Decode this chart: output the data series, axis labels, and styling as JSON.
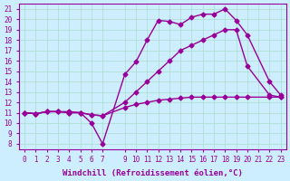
{
  "background_color": "#cceeff",
  "grid_color": "#aaddcc",
  "line_color": "#990099",
  "marker": "D",
  "markersize": 2.5,
  "linewidth": 1.0,
  "xlabel": "Windchill (Refroidissement éolien,°C)",
  "xlabel_fontsize": 6.5,
  "tick_fontsize": 5.5,
  "xlim": [
    -0.5,
    23.5
  ],
  "ylim": [
    7.5,
    21.5
  ],
  "yticks": [
    8,
    9,
    10,
    11,
    12,
    13,
    14,
    15,
    16,
    17,
    18,
    19,
    20,
    21
  ],
  "xticks": [
    0,
    1,
    2,
    3,
    4,
    5,
    6,
    7,
    9,
    10,
    11,
    12,
    13,
    14,
    15,
    16,
    17,
    18,
    19,
    20,
    21,
    22,
    23
  ],
  "series": [
    {
      "x": [
        0,
        1,
        2,
        3,
        4,
        5,
        6,
        7,
        9,
        10,
        11,
        12,
        13,
        14,
        15,
        16,
        17,
        18,
        19,
        20,
        22,
        23
      ],
      "y": [
        11.0,
        10.9,
        11.1,
        11.1,
        11.1,
        11.0,
        10.0,
        8.0,
        14.7,
        15.9,
        18.0,
        19.9,
        19.8,
        19.5,
        20.2,
        20.5,
        20.5,
        21.0,
        19.9,
        18.5,
        14.0,
        12.7
      ]
    },
    {
      "x": [
        0,
        1,
        2,
        3,
        4,
        5,
        6,
        7,
        9,
        10,
        11,
        12,
        13,
        14,
        15,
        16,
        17,
        18,
        19,
        20,
        22,
        23
      ],
      "y": [
        11.0,
        10.9,
        11.1,
        11.1,
        11.0,
        11.0,
        10.8,
        10.7,
        11.5,
        11.8,
        12.0,
        12.2,
        12.3,
        12.4,
        12.5,
        12.5,
        12.5,
        12.5,
        12.5,
        12.5,
        12.5,
        12.5
      ]
    },
    {
      "x": [
        0,
        1,
        2,
        3,
        4,
        5,
        6,
        7,
        9,
        10,
        11,
        12,
        13,
        14,
        15,
        16,
        17,
        18,
        19,
        20,
        22,
        23
      ],
      "y": [
        11.0,
        10.9,
        11.1,
        11.1,
        11.0,
        11.0,
        10.8,
        10.7,
        12.0,
        13.0,
        14.0,
        15.0,
        16.0,
        17.0,
        17.5,
        18.0,
        18.5,
        19.0,
        19.0,
        15.5,
        12.7,
        12.5
      ]
    }
  ]
}
